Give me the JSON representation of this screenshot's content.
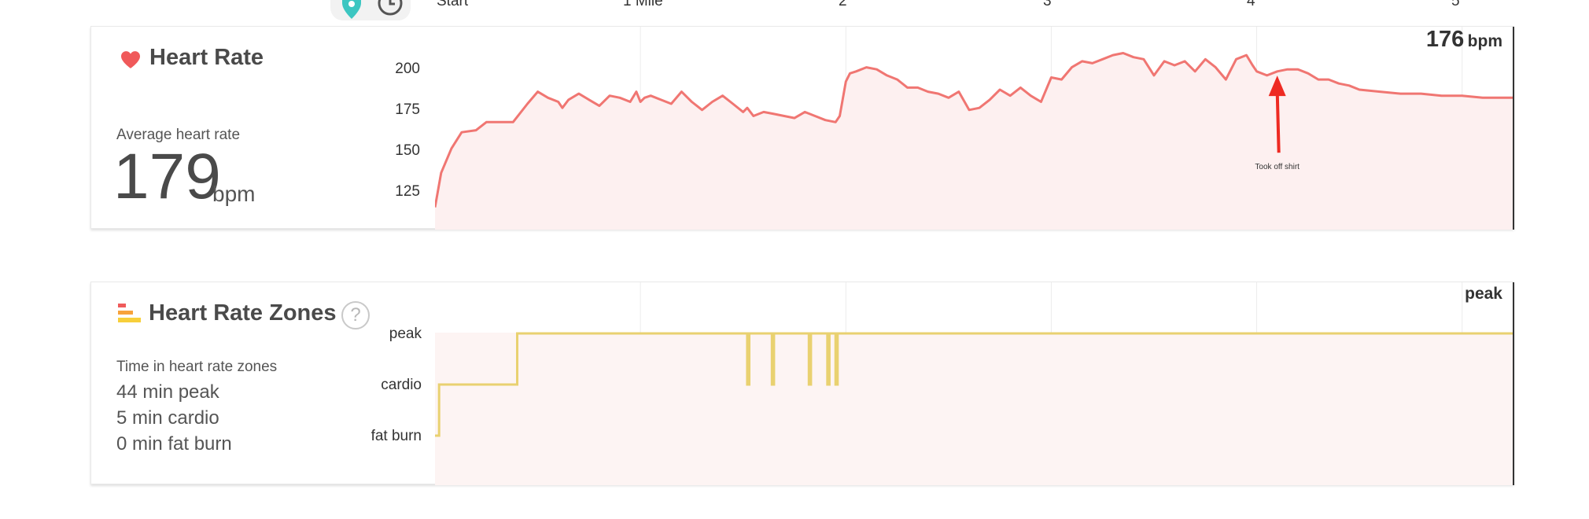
{
  "distance_axis": {
    "labels": [
      "Start",
      "1 Mile",
      "2",
      "3",
      "4",
      "5"
    ]
  },
  "heart_rate": {
    "title": "Heart Rate",
    "summary_label": "Average heart rate",
    "average_value": "179",
    "average_unit": "bpm",
    "current_value": "176",
    "current_unit": "bpm",
    "y_ticks": [
      "200",
      "175",
      "150",
      "125"
    ],
    "annotation": "Took off shirt",
    "colors": {
      "line": "#f07672",
      "fill": "#fdf0f0",
      "arrow": "#ee2a22",
      "heart": "#f0595a"
    }
  },
  "zones": {
    "title": "Heart Rate Zones",
    "help_symbol": "?",
    "summary_label": "Time in heart rate zones",
    "entries": [
      "44 min peak",
      "5 min cardio",
      "0 min fat burn"
    ],
    "y_ticks": [
      "peak",
      "cardio",
      "fat burn"
    ],
    "current_zone": "peak",
    "colors": {
      "line": "#e9d170",
      "fill": "#fdf4f3",
      "bar_red": "#ef5b5b",
      "bar_orange": "#f7a23b",
      "bar_yellow": "#f7cf3b"
    }
  },
  "chart_data": [
    {
      "type": "line",
      "title": "Heart Rate",
      "x_axis_labels": [
        "Start",
        "1 Mile",
        "2",
        "3",
        "4",
        "5"
      ],
      "x": [
        0,
        0.03,
        0.08,
        0.13,
        0.2,
        0.25,
        0.3,
        0.38,
        0.45,
        0.5,
        0.55,
        0.6,
        0.62,
        0.65,
        0.7,
        0.75,
        0.8,
        0.85,
        0.9,
        0.95,
        0.98,
        1.0,
        1.02,
        1.05,
        1.1,
        1.15,
        1.2,
        1.25,
        1.3,
        1.35,
        1.4,
        1.45,
        1.5,
        1.52,
        1.55,
        1.6,
        1.65,
        1.7,
        1.75,
        1.8,
        1.85,
        1.9,
        1.95,
        1.97,
        2.0,
        2.02,
        2.05,
        2.1,
        2.15,
        2.2,
        2.25,
        2.3,
        2.35,
        2.4,
        2.45,
        2.5,
        2.55,
        2.6,
        2.65,
        2.7,
        2.75,
        2.8,
        2.85,
        2.9,
        2.95,
        3.0,
        3.05,
        3.1,
        3.15,
        3.2,
        3.25,
        3.3,
        3.35,
        3.4,
        3.45,
        3.5,
        3.55,
        3.6,
        3.65,
        3.7,
        3.75,
        3.8,
        3.85,
        3.9,
        3.95,
        3.98,
        4.0,
        4.05,
        4.1,
        4.15,
        4.2,
        4.25,
        4.3,
        4.35,
        4.4,
        4.45,
        4.5,
        4.6,
        4.7,
        4.8,
        4.9,
        5.0,
        5.1,
        5.25
      ],
      "y": [
        123,
        140,
        152,
        160,
        161,
        165,
        165,
        165,
        174,
        180,
        177,
        175,
        172,
        176,
        179,
        176,
        173,
        178,
        177,
        175,
        180,
        175,
        177,
        178,
        176,
        174,
        180,
        175,
        171,
        175,
        178,
        174,
        170,
        172,
        168,
        170,
        169,
        168,
        167,
        170,
        168,
        166,
        165,
        168,
        185,
        189,
        190,
        192,
        191,
        188,
        186,
        182,
        182,
        180,
        179,
        177,
        180,
        171,
        172,
        176,
        181,
        178,
        182,
        178,
        175,
        187,
        186,
        192,
        195,
        194,
        196,
        198,
        199,
        197,
        196,
        188,
        195,
        193,
        195,
        190,
        196,
        192,
        186,
        196,
        198,
        193,
        190,
        188,
        190,
        191,
        191,
        189,
        186,
        186,
        184,
        183,
        181,
        180,
        179,
        179,
        178,
        178,
        177,
        177
      ],
      "ylim": [
        112,
        212
      ],
      "y_ticks": [
        125,
        150,
        175,
        200
      ],
      "annotations": [
        {
          "x": 4.1,
          "y": 191,
          "text": "Took off shirt"
        }
      ],
      "current_value": 176,
      "grid": true
    },
    {
      "type": "line",
      "title": "Heart Rate Zones",
      "categories_y": [
        "fat burn",
        "cardio",
        "peak"
      ],
      "x": [
        0,
        0.02,
        0.02,
        0.4,
        0.4,
        1.52,
        1.52,
        1.53,
        1.53,
        1.64,
        1.64,
        1.65,
        1.65,
        1.82,
        1.82,
        1.83,
        1.83,
        1.91,
        1.91,
        1.92,
        1.92,
        1.95,
        1.95,
        1.96,
        1.96,
        5.25
      ],
      "y": [
        0,
        0,
        1,
        1,
        2,
        2,
        1,
        1,
        2,
        2,
        1,
        1,
        2,
        2,
        1,
        1,
        2,
        2,
        1,
        1,
        2,
        2,
        1,
        1,
        2,
        2
      ],
      "current_value": "peak",
      "grid": true
    }
  ]
}
